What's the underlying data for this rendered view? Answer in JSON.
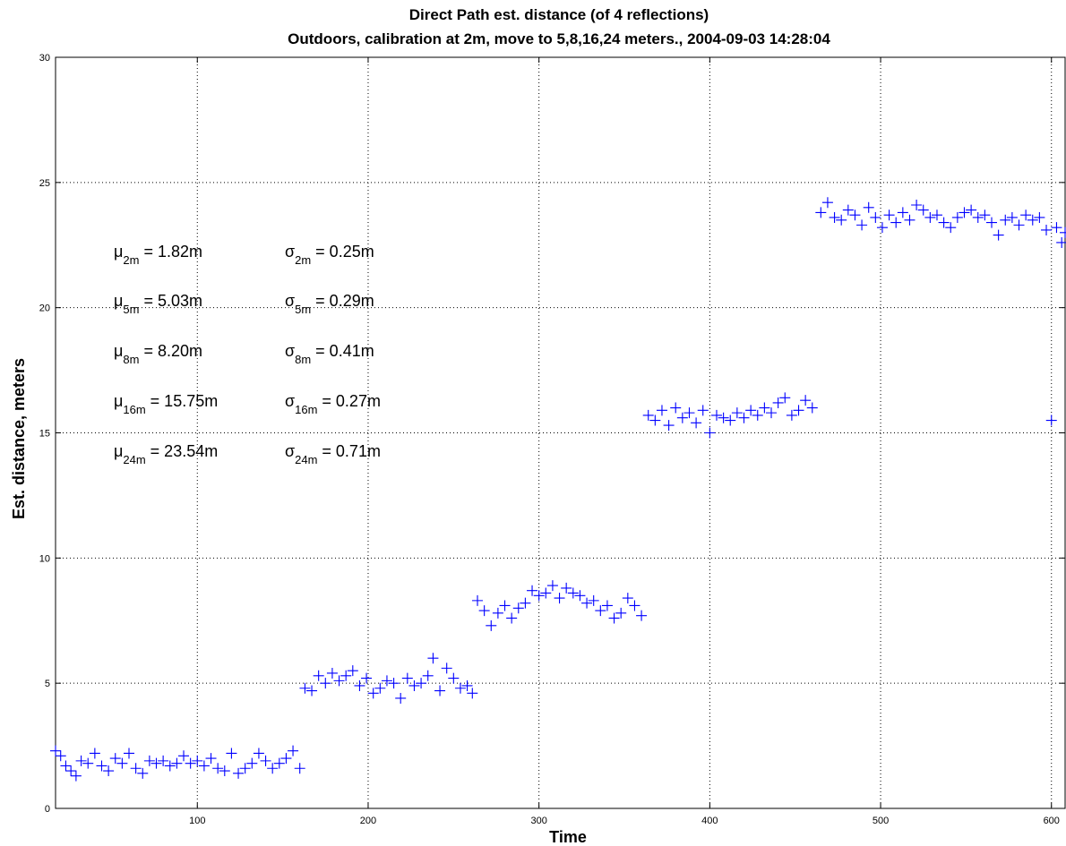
{
  "chart_data": {
    "type": "scatter",
    "title": "Direct Path est. distance (of 4 reflections)",
    "subtitle": "Outdoors, calibration at 2m, move to 5,8,16,24 meters., 2004-09-03 14:28:04",
    "xlabel": "Time",
    "ylabel": "Est. distance, meters",
    "xlim": [
      17,
      608
    ],
    "ylim": [
      0,
      30
    ],
    "x_ticks": [
      100,
      200,
      300,
      400,
      500,
      600
    ],
    "y_ticks": [
      0,
      5,
      10,
      15,
      20,
      25,
      30
    ],
    "grid": true,
    "marker": "+",
    "marker_color": "#0000ff",
    "segments": [
      {
        "x_start": 17,
        "x_end": 160,
        "mean": 1.82,
        "std": 0.25
      },
      {
        "x_start": 161,
        "x_end": 261,
        "mean": 5.03,
        "std": 0.29
      },
      {
        "x_start": 262,
        "x_end": 360,
        "mean": 8.2,
        "std": 0.41
      },
      {
        "x_start": 361,
        "x_end": 461,
        "mean": 15.75,
        "std": 0.27
      },
      {
        "x_start": 462,
        "x_end": 608,
        "mean": 23.54,
        "std": 0.71
      }
    ],
    "points": [
      [
        17,
        2.3
      ],
      [
        20,
        2.1
      ],
      [
        23,
        1.7
      ],
      [
        26,
        1.5
      ],
      [
        29,
        1.3
      ],
      [
        32,
        1.9
      ],
      [
        36,
        1.8
      ],
      [
        40,
        2.2
      ],
      [
        44,
        1.7
      ],
      [
        48,
        1.5
      ],
      [
        52,
        2.0
      ],
      [
        56,
        1.8
      ],
      [
        60,
        2.2
      ],
      [
        64,
        1.6
      ],
      [
        68,
        1.4
      ],
      [
        72,
        1.9
      ],
      [
        76,
        1.8
      ],
      [
        80,
        1.9
      ],
      [
        84,
        1.7
      ],
      [
        88,
        1.8
      ],
      [
        92,
        2.1
      ],
      [
        96,
        1.8
      ],
      [
        100,
        1.9
      ],
      [
        104,
        1.7
      ],
      [
        108,
        2.0
      ],
      [
        112,
        1.6
      ],
      [
        116,
        1.5
      ],
      [
        120,
        2.2
      ],
      [
        124,
        1.4
      ],
      [
        128,
        1.6
      ],
      [
        132,
        1.8
      ],
      [
        136,
        2.2
      ],
      [
        140,
        1.9
      ],
      [
        144,
        1.6
      ],
      [
        148,
        1.8
      ],
      [
        152,
        2.0
      ],
      [
        156,
        2.3
      ],
      [
        160,
        1.6
      ],
      [
        163,
        4.8
      ],
      [
        167,
        4.7
      ],
      [
        171,
        5.3
      ],
      [
        175,
        5.0
      ],
      [
        179,
        5.4
      ],
      [
        183,
        5.1
      ],
      [
        187,
        5.3
      ],
      [
        191,
        5.5
      ],
      [
        195,
        4.9
      ],
      [
        199,
        5.2
      ],
      [
        203,
        4.6
      ],
      [
        207,
        4.8
      ],
      [
        211,
        5.1
      ],
      [
        215,
        5.0
      ],
      [
        219,
        4.4
      ],
      [
        223,
        5.2
      ],
      [
        227,
        4.9
      ],
      [
        231,
        5.0
      ],
      [
        235,
        5.3
      ],
      [
        238,
        6.0
      ],
      [
        242,
        4.7
      ],
      [
        246,
        5.6
      ],
      [
        250,
        5.2
      ],
      [
        254,
        4.8
      ],
      [
        258,
        4.9
      ],
      [
        261,
        4.6
      ],
      [
        264,
        8.3
      ],
      [
        268,
        7.9
      ],
      [
        272,
        7.3
      ],
      [
        276,
        7.8
      ],
      [
        280,
        8.1
      ],
      [
        284,
        7.6
      ],
      [
        288,
        8.0
      ],
      [
        292,
        8.2
      ],
      [
        296,
        8.7
      ],
      [
        300,
        8.5
      ],
      [
        304,
        8.6
      ],
      [
        308,
        8.9
      ],
      [
        312,
        8.4
      ],
      [
        316,
        8.8
      ],
      [
        320,
        8.6
      ],
      [
        324,
        8.5
      ],
      [
        328,
        8.2
      ],
      [
        332,
        8.3
      ],
      [
        336,
        7.9
      ],
      [
        340,
        8.1
      ],
      [
        344,
        7.6
      ],
      [
        348,
        7.8
      ],
      [
        352,
        8.4
      ],
      [
        356,
        8.1
      ],
      [
        360,
        7.7
      ],
      [
        364,
        15.7
      ],
      [
        368,
        15.5
      ],
      [
        372,
        15.9
      ],
      [
        376,
        15.3
      ],
      [
        380,
        16.0
      ],
      [
        384,
        15.6
      ],
      [
        388,
        15.8
      ],
      [
        392,
        15.4
      ],
      [
        396,
        15.9
      ],
      [
        400,
        15.0
      ],
      [
        404,
        15.7
      ],
      [
        408,
        15.6
      ],
      [
        412,
        15.5
      ],
      [
        416,
        15.8
      ],
      [
        420,
        15.6
      ],
      [
        424,
        15.9
      ],
      [
        428,
        15.7
      ],
      [
        432,
        16.0
      ],
      [
        436,
        15.8
      ],
      [
        440,
        16.2
      ],
      [
        444,
        16.4
      ],
      [
        448,
        15.7
      ],
      [
        452,
        15.9
      ],
      [
        456,
        16.3
      ],
      [
        460,
        16.0
      ],
      [
        465,
        23.8
      ],
      [
        469,
        24.2
      ],
      [
        473,
        23.6
      ],
      [
        477,
        23.5
      ],
      [
        481,
        23.9
      ],
      [
        485,
        23.7
      ],
      [
        489,
        23.3
      ],
      [
        493,
        24.0
      ],
      [
        497,
        23.6
      ],
      [
        501,
        23.2
      ],
      [
        505,
        23.7
      ],
      [
        509,
        23.4
      ],
      [
        513,
        23.8
      ],
      [
        517,
        23.5
      ],
      [
        521,
        24.1
      ],
      [
        525,
        23.9
      ],
      [
        529,
        23.6
      ],
      [
        533,
        23.7
      ],
      [
        537,
        23.4
      ],
      [
        541,
        23.2
      ],
      [
        545,
        23.6
      ],
      [
        549,
        23.8
      ],
      [
        553,
        23.9
      ],
      [
        557,
        23.6
      ],
      [
        561,
        23.7
      ],
      [
        565,
        23.4
      ],
      [
        569,
        22.9
      ],
      [
        573,
        23.5
      ],
      [
        577,
        23.6
      ],
      [
        581,
        23.3
      ],
      [
        585,
        23.7
      ],
      [
        589,
        23.5
      ],
      [
        593,
        23.6
      ],
      [
        597,
        23.1
      ],
      [
        600,
        15.5
      ],
      [
        603,
        23.2
      ],
      [
        606,
        22.6
      ],
      [
        608,
        23.0
      ]
    ]
  },
  "annotations": [
    {
      "sym": "μ",
      "sub": "2m",
      "val": " = 1.82m"
    },
    {
      "sym": "σ",
      "sub": "2m",
      "val": " = 0.25m"
    },
    {
      "sym": "μ",
      "sub": "5m",
      "val": " = 5.03m"
    },
    {
      "sym": "σ",
      "sub": "5m",
      "val": " = 0.29m"
    },
    {
      "sym": "μ",
      "sub": "8m",
      "val": " = 8.20m"
    },
    {
      "sym": "σ",
      "sub": "8m",
      "val": " = 0.41m"
    },
    {
      "sym": "μ",
      "sub": "16m",
      "val": " = 15.75m"
    },
    {
      "sym": "σ",
      "sub": "16m",
      "val": " = 0.27m"
    },
    {
      "sym": "μ",
      "sub": "24m",
      "val": " = 23.54m"
    },
    {
      "sym": "σ",
      "sub": "24m",
      "val": " = 0.71m"
    }
  ]
}
